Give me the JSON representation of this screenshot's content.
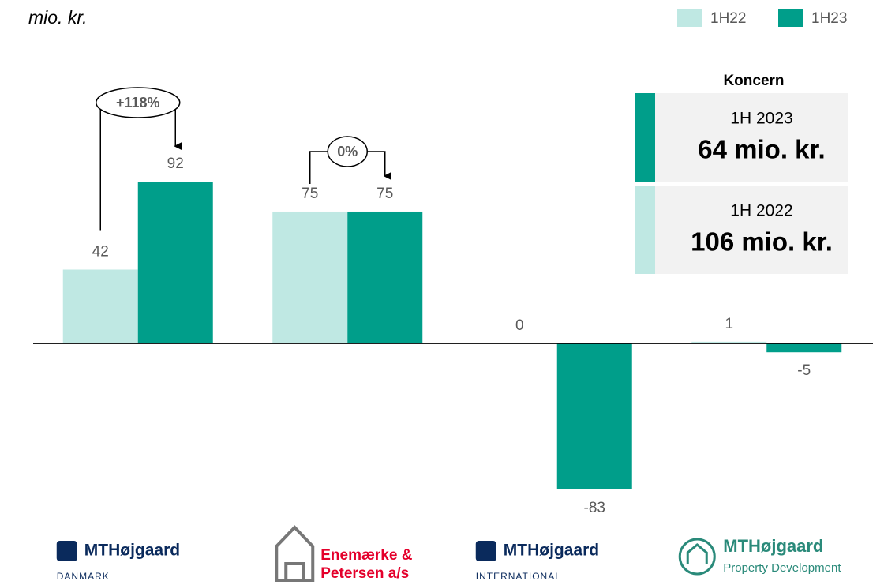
{
  "chart_data": {
    "type": "bar",
    "unit_label": "mio. kr.",
    "categories": [
      [
        "MTHøjgaard",
        "DANMARK"
      ],
      [
        "Enemærke &",
        "Petersen a/s"
      ],
      [
        "MTHøjgaard",
        "INTERNATIONAL"
      ],
      [
        "MTHøjgaard",
        "Property Development"
      ]
    ],
    "series": [
      {
        "name": "1H22",
        "color": "#bfe8e3",
        "values": [
          42,
          75,
          0,
          1
        ]
      },
      {
        "name": "1H23",
        "color": "#009e8a",
        "values": [
          92,
          75,
          -83,
          -5
        ]
      }
    ],
    "ylim": [
      -90,
      110
    ],
    "annotations": [
      "+118%",
      "0%"
    ],
    "summary": {
      "title": "Koncern",
      "items": [
        {
          "period": "1H 2023",
          "value": "64 mio. kr."
        },
        {
          "period": "1H 2022",
          "value": "106 mio. kr."
        }
      ]
    },
    "legend": "top-right"
  }
}
